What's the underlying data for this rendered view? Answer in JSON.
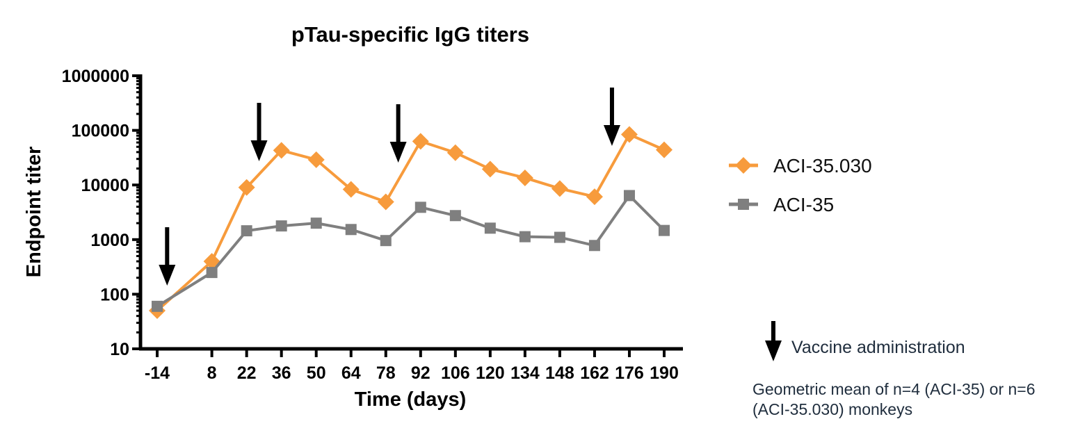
{
  "chart_data": {
    "type": "line",
    "title": "pTau-specific IgG titers",
    "xlabel": "Time (days)",
    "ylabel": "Endpoint titer",
    "yscale": "log",
    "ylim": [
      10,
      1000000
    ],
    "yticks": [
      "10",
      "100",
      "1000",
      "10000",
      "100000",
      "1000000"
    ],
    "x": [
      -14,
      8,
      22,
      36,
      50,
      64,
      78,
      92,
      106,
      120,
      134,
      148,
      162,
      176,
      190
    ],
    "xtick_labels": [
      "-14",
      "8",
      "22",
      "36",
      "50",
      "64",
      "78",
      "92",
      "106",
      "120",
      "134",
      "148",
      "162",
      "176",
      "190"
    ],
    "series": [
      {
        "name": "ACI-35.030",
        "color": "#f79b3c",
        "marker": "diamond",
        "values": [
          50,
          400,
          9000,
          43000,
          29000,
          8300,
          4900,
          63000,
          39000,
          19500,
          13500,
          8600,
          6100,
          84000,
          44000
        ]
      },
      {
        "name": "ACI-35",
        "color": "#7f7f7f",
        "marker": "square",
        "values": [
          60,
          250,
          1450,
          1780,
          2000,
          1530,
          960,
          3900,
          2750,
          1620,
          1130,
          1100,
          780,
          6400,
          1470
        ]
      }
    ],
    "vaccine_administration_days": [
      -10,
      27,
      83,
      169
    ],
    "legend": {
      "placement": "right",
      "entries": [
        "ACI-35.030",
        "ACI-35"
      ]
    },
    "grid": false
  },
  "annotations": {
    "vaccine_label": "Vaccine administration",
    "footnote": "Geometric mean of n=4 (ACI-35) or n=6 (ACI-35.030) monkeys"
  }
}
